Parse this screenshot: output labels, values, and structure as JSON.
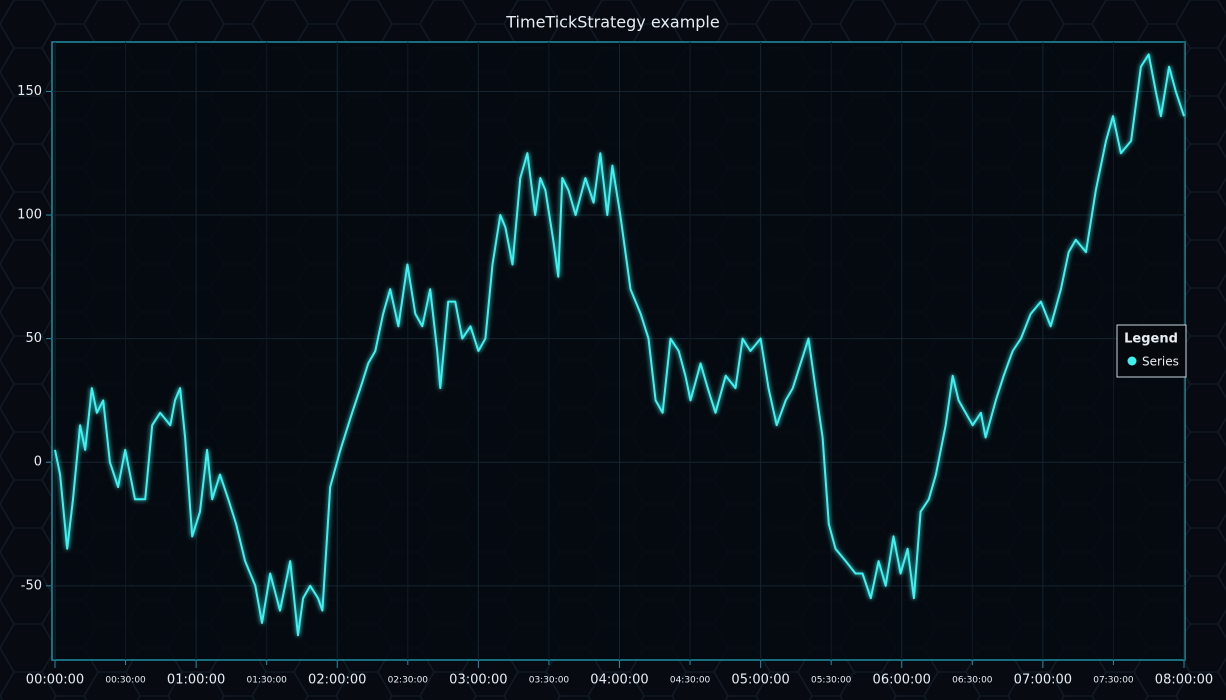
{
  "chart_data": {
    "type": "line",
    "title": "TimeTickStrategy example",
    "legend_title": "Legend",
    "legend_position": "right",
    "xlim": [
      0,
      28800
    ],
    "ylim": [
      -80,
      170
    ],
    "yticks": [
      -50,
      0,
      50,
      100,
      150
    ],
    "xticks": [
      {
        "value": 0,
        "label": "00:00:00"
      },
      {
        "value": 3600,
        "label": "01:00:00"
      },
      {
        "value": 7200,
        "label": "02:00:00"
      },
      {
        "value": 10800,
        "label": "03:00:00"
      },
      {
        "value": 14400,
        "label": "04:00:00"
      },
      {
        "value": 18000,
        "label": "05:00:00"
      },
      {
        "value": 21600,
        "label": "06:00:00"
      },
      {
        "value": 25200,
        "label": "07:00:00"
      },
      {
        "value": 28800,
        "label": "08:00:00"
      }
    ],
    "xticks_minor": [
      {
        "value": 1800,
        "label": "00:30:00"
      },
      {
        "value": 5400,
        "label": "01:30:00"
      },
      {
        "value": 9000,
        "label": "02:30:00"
      },
      {
        "value": 12600,
        "label": "03:30:00"
      },
      {
        "value": 16200,
        "label": "04:30:00"
      },
      {
        "value": 19800,
        "label": "05:30:00"
      },
      {
        "value": 23400,
        "label": "06:30:00"
      },
      {
        "value": 27000,
        "label": "07:30:00"
      }
    ],
    "grid": true,
    "series": [
      {
        "name": "Series",
        "color": "#3ef2f0",
        "x": [
          0,
          130,
          310,
          460,
          640,
          770,
          940,
          1070,
          1230,
          1400,
          1610,
          1790,
          2040,
          2300,
          2480,
          2680,
          2940,
          3060,
          3190,
          3320,
          3500,
          3700,
          3880,
          4010,
          4210,
          4420,
          4620,
          4850,
          5110,
          5280,
          5490,
          5740,
          6000,
          6200,
          6330,
          6510,
          6710,
          6820,
          7020,
          7280,
          7580,
          7790,
          7990,
          8170,
          8370,
          8550,
          8760,
          8990,
          9190,
          9370,
          9570,
          9750,
          9830,
          10030,
          10210,
          10390,
          10600,
          10800,
          10980,
          11160,
          11360,
          11490,
          11670,
          11870,
          12050,
          12250,
          12380,
          12510,
          12710,
          12840,
          12940,
          13100,
          13280,
          13530,
          13740,
          13910,
          14090,
          14220,
          14420,
          14680,
          14940,
          15140,
          15320,
          15500,
          15700,
          15910,
          16080,
          16210,
          16470,
          16650,
          16850,
          17110,
          17360,
          17540,
          17740,
          18000,
          18200,
          18410,
          18640,
          18820,
          19020,
          19220,
          19400,
          19580,
          19740,
          19910,
          20170,
          20420,
          20600,
          20810,
          21010,
          21190,
          21390,
          21570,
          21750,
          21910,
          22080,
          22290,
          22470,
          22720,
          22900,
          23050,
          23230,
          23410,
          23620,
          23740,
          24000,
          24200,
          24430,
          24640,
          24890,
          25150,
          25400,
          25660,
          25860,
          26040,
          26300,
          26550,
          26810,
          26990,
          27190,
          27450,
          27700,
          27900,
          28080,
          28210,
          28420,
          28590,
          28800
        ],
        "values": [
          5,
          -5,
          -35,
          -15,
          15,
          5,
          30,
          20,
          25,
          0,
          -10,
          5,
          -15,
          -15,
          15,
          20,
          15,
          25,
          30,
          10,
          -30,
          -20,
          5,
          -15,
          -5,
          -15,
          -25,
          -40,
          -50,
          -65,
          -45,
          -60,
          -40,
          -70,
          -55,
          -50,
          -55,
          -60,
          -10,
          5,
          20,
          30,
          40,
          45,
          60,
          70,
          55,
          80,
          60,
          55,
          70,
          45,
          30,
          65,
          65,
          50,
          55,
          45,
          50,
          80,
          100,
          95,
          80,
          115,
          125,
          100,
          115,
          110,
          90,
          75,
          115,
          110,
          100,
          115,
          105,
          125,
          100,
          120,
          100,
          70,
          60,
          50,
          25,
          20,
          50,
          45,
          35,
          25,
          40,
          30,
          20,
          35,
          30,
          50,
          45,
          50,
          30,
          15,
          25,
          30,
          40,
          50,
          30,
          10,
          -25,
          -35,
          -40,
          -45,
          -45,
          -55,
          -40,
          -50,
          -30,
          -45,
          -35,
          -55,
          -20,
          -15,
          -5,
          15,
          35,
          25,
          20,
          15,
          20,
          10,
          25,
          35,
          45,
          50,
          60,
          65,
          55,
          70,
          85,
          90,
          85,
          110,
          130,
          140,
          125,
          130,
          160,
          165,
          150,
          140,
          160,
          150,
          140
        ]
      }
    ]
  }
}
